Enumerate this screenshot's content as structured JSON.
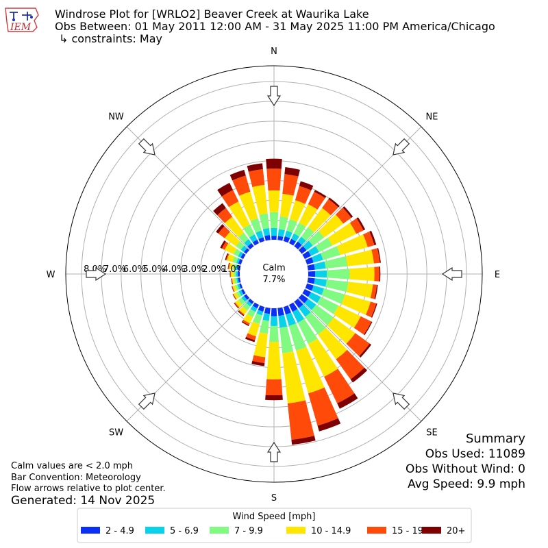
{
  "header": {
    "logo_text": "IEM",
    "title_lines": [
      "Windrose Plot for [WRLO2] Beaver Creek at Waurika Lake",
      "Obs Between: 01 May 2011 12:00 AM - 31 May 2025 11:00 PM America/Chicago",
      "↳ constraints: May"
    ]
  },
  "chart_data": {
    "type": "windrose",
    "directions": [
      "N",
      "NNE",
      "NE",
      "ENE",
      "E",
      "ESE",
      "SE",
      "SSE",
      "S",
      "SSW",
      "SW",
      "WSW",
      "W",
      "WNW",
      "NW",
      "NNW"
    ],
    "direction_angles": [
      0,
      10,
      20,
      30,
      40,
      50,
      60,
      70,
      80,
      90,
      100,
      110,
      120,
      130,
      140,
      150,
      160,
      170,
      180,
      190,
      200,
      210,
      220,
      230,
      240,
      250,
      260,
      270,
      280,
      290,
      300,
      310,
      320,
      330,
      340,
      350
    ],
    "bins": [
      {
        "name": "2 - 4.9",
        "color": "#0b2ff5"
      },
      {
        "name": "5 - 6.9",
        "color": "#08d2ea"
      },
      {
        "name": "7 - 9.9",
        "color": "#80fa80"
      },
      {
        "name": "10 - 14.9",
        "color": "#ffe600"
      },
      {
        "name": "15 - 19.9",
        "color": "#ff4a0a"
      },
      {
        "name": "20+",
        "color": "#7f0000"
      }
    ],
    "cumulative_percent": [
      [
        0.2,
        0.6,
        1.4,
        2.5,
        3.6,
        4.1
      ],
      [
        0.2,
        0.55,
        1.2,
        2.35,
        3.35,
        3.7
      ],
      [
        0.25,
        0.55,
        1.15,
        2.15,
        2.9,
        3.15
      ],
      [
        0.25,
        0.55,
        1.15,
        2.2,
        2.9,
        3.0
      ],
      [
        0.3,
        0.6,
        1.2,
        2.4,
        2.95,
        3.05
      ],
      [
        0.3,
        0.7,
        1.4,
        2.6,
        3.1,
        3.2
      ],
      [
        0.35,
        0.8,
        1.55,
        2.9,
        3.3,
        3.4
      ],
      [
        0.35,
        0.85,
        1.75,
        3.2,
        3.55,
        3.65
      ],
      [
        0.35,
        0.9,
        2.0,
        3.35,
        3.65,
        3.7
      ],
      [
        0.35,
        0.95,
        2.1,
        3.35,
        3.6,
        3.65
      ],
      [
        0.35,
        0.95,
        2.05,
        3.3,
        3.5,
        3.55
      ],
      [
        0.35,
        0.9,
        2.0,
        3.35,
        3.65,
        3.7
      ],
      [
        0.35,
        0.9,
        1.9,
        3.15,
        3.75,
        3.8
      ],
      [
        0.4,
        0.9,
        2.0,
        3.35,
        4.25,
        4.35
      ],
      [
        0.4,
        0.95,
        2.05,
        3.6,
        4.85,
        5.05
      ],
      [
        0.4,
        1.0,
        2.2,
        4.05,
        5.55,
        5.85
      ],
      [
        0.4,
        1.0,
        2.3,
        4.55,
        6.25,
        6.55
      ],
      [
        0.4,
        1.0,
        2.3,
        4.85,
        6.7,
        6.95
      ],
      [
        0.4,
        0.9,
        1.7,
        3.6,
        4.4,
        4.65
      ],
      [
        0.3,
        0.65,
        1.3,
        2.5,
        2.8,
        2.95
      ],
      [
        0.25,
        0.45,
        0.9,
        1.55,
        1.75,
        1.85
      ],
      [
        0.2,
        0.4,
        0.7,
        1.05,
        1.15,
        1.2
      ],
      [
        0.15,
        0.3,
        0.55,
        0.8,
        0.85,
        0.9
      ],
      [
        0.15,
        0.3,
        0.5,
        0.7,
        0.75,
        0.78
      ],
      [
        0.12,
        0.25,
        0.4,
        0.55,
        0.58,
        0.6
      ],
      [
        0.1,
        0.2,
        0.32,
        0.45,
        0.48,
        0.5
      ],
      [
        0.1,
        0.18,
        0.3,
        0.4,
        0.42,
        0.45
      ],
      [
        0.1,
        0.2,
        0.3,
        0.45,
        0.48,
        0.5
      ],
      [
        0.12,
        0.22,
        0.35,
        0.55,
        0.6,
        0.62
      ],
      [
        0.15,
        0.25,
        0.45,
        0.75,
        0.8,
        0.85
      ],
      [
        0.15,
        0.3,
        0.55,
        1.05,
        1.2,
        1.3
      ],
      [
        0.15,
        0.35,
        0.65,
        1.35,
        1.75,
        1.9
      ],
      [
        0.2,
        0.45,
        0.85,
        1.85,
        2.4,
        2.7
      ],
      [
        0.2,
        0.5,
        1.05,
        2.35,
        3.0,
        3.4
      ],
      [
        0.2,
        0.55,
        1.2,
        2.6,
        3.45,
        3.75
      ],
      [
        0.25,
        0.6,
        1.35,
        2.8,
        3.6,
        3.9
      ]
    ],
    "rmax": 8.8,
    "ring_labels": [
      "0.0%",
      "1.0%",
      "2.0%",
      "3.0%",
      "4.0%",
      "5.0%",
      "6.0%",
      "7.0%",
      "8.0%"
    ],
    "calm_label": "Calm",
    "calm_value": "7.7%",
    "compass": [
      "N",
      "NE",
      "E",
      "SE",
      "S",
      "SW",
      "W",
      "NW"
    ],
    "legend_title": "Wind Speed [mph]",
    "grid": true
  },
  "summary": {
    "heading": "Summary",
    "lines": [
      "Obs Used: 11089",
      "Obs Without Wind: 0",
      "Avg Speed: 9.9 mph"
    ]
  },
  "notes": {
    "lines": [
      "Calm values are < 2.0 mph",
      "Bar Convention: Meteorology",
      "Flow arrows relative to plot center."
    ],
    "generated": "Generated: 14 Nov 2025"
  }
}
